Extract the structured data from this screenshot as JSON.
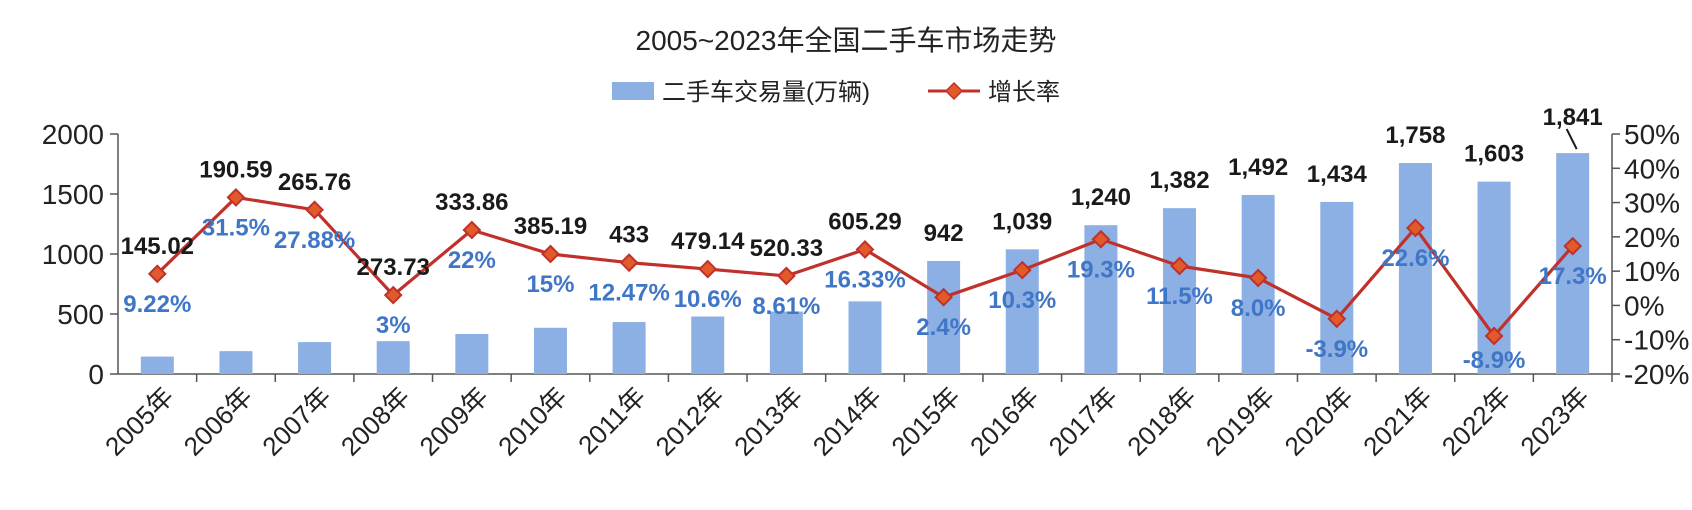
{
  "chart_data": {
    "type": "bar+line",
    "title": "2005~2023年全国二手车市场走势",
    "legend": {
      "bar": "二手车交易量(万辆)",
      "line": "增长率"
    },
    "categories": [
      "2005年",
      "2006年",
      "2007年",
      "2008年",
      "2009年",
      "2010年",
      "2011年",
      "2012年",
      "2013年",
      "2014年",
      "2015年",
      "2016年",
      "2017年",
      "2018年",
      "2019年",
      "2020年",
      "2021年",
      "2022年",
      "2023年"
    ],
    "series": [
      {
        "name": "二手车交易量(万辆)",
        "type": "bar",
        "axis": "left",
        "values": [
          145.02,
          190.59,
          265.76,
          273.73,
          333.86,
          385.19,
          433,
          479.14,
          520.33,
          605.29,
          942,
          1039,
          1240,
          1382,
          1492,
          1434,
          1758,
          1603,
          1841
        ],
        "labels": [
          "145.02",
          "190.59",
          "265.76",
          "273.73",
          "333.86",
          "385.19",
          "433",
          "479.14",
          "520.33",
          "605.29",
          "942",
          "1,039",
          "1,240",
          "1,382",
          "1,492",
          "1,434",
          "1,758",
          "1,603",
          "1,841"
        ],
        "color": "#8cb0e4"
      },
      {
        "name": "增长率",
        "type": "line",
        "axis": "right",
        "values": [
          9.22,
          31.5,
          27.88,
          3,
          22,
          15,
          12.47,
          10.6,
          8.61,
          16.33,
          2.4,
          10.3,
          19.3,
          11.5,
          8.0,
          -3.9,
          22.6,
          -8.9,
          17.3
        ],
        "labels": [
          "9.22%",
          "31.5%",
          "27.88%",
          "3%",
          "22%",
          "15%",
          "12.47%",
          "10.6%",
          "8.61%",
          "16.33%",
          "2.4%",
          "10.3%",
          "19.3%",
          "11.5%",
          "8.0%",
          "-3.9%",
          "22.6%",
          "-8.9%",
          "17.3%"
        ],
        "color": "#c0312b",
        "label_color": "#3f76c6"
      }
    ],
    "y_left": {
      "min": 0,
      "max": 2000,
      "ticks": [
        0,
        500,
        1000,
        1500,
        2000
      ],
      "tick_labels": [
        "0",
        "500",
        "1000",
        "1500",
        "2000"
      ]
    },
    "y_right": {
      "min": -20,
      "max": 50,
      "ticks": [
        -20,
        -10,
        0,
        10,
        20,
        30,
        40,
        50
      ],
      "tick_labels": [
        "-20%",
        "-10%",
        "0%",
        "10%",
        "20%",
        "30%",
        "40%",
        "50%"
      ]
    },
    "grid": false
  }
}
